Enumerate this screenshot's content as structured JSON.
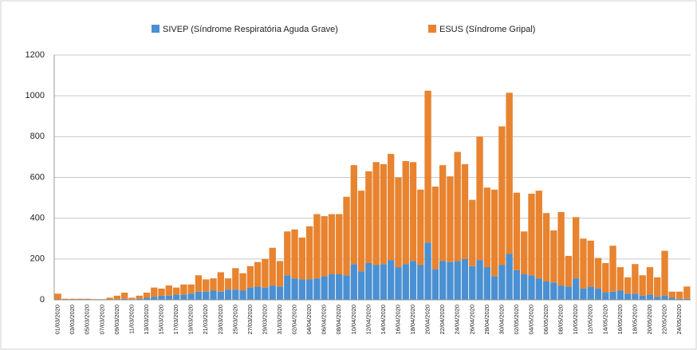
{
  "chart_data": {
    "type": "stacked_bar",
    "categories": [
      "01/03/2020",
      null,
      "03/03/2020",
      null,
      "05/03/2020",
      null,
      "07/03/2020",
      null,
      "09/03/2020",
      null,
      "11/03/2020",
      null,
      "13/03/2020",
      null,
      "15/03/2020",
      null,
      "17/03/2020",
      null,
      "19/03/2020",
      null,
      "21/03/2020",
      null,
      "23/03/2020",
      null,
      "25/03/2020",
      null,
      "27/03/2020",
      null,
      "29/03/2020",
      null,
      "31/03/2020",
      null,
      "02/04/2020",
      null,
      "04/04/2020",
      null,
      "06/04/2020",
      null,
      "08/04/2020",
      null,
      "10/04/2020",
      null,
      "12/04/2020",
      null,
      "14/04/2020",
      null,
      "16/04/2020",
      null,
      "18/04/2020",
      null,
      "20/04/2020",
      null,
      "22/04/2020",
      null,
      "24/04/2020",
      null,
      "26/04/2020",
      null,
      "28/04/2020",
      null,
      "30/04/2020",
      null,
      "02/05/2020",
      null,
      "04/05/2020",
      null,
      "06/05/2020",
      null,
      "08/05/2020",
      null,
      "10/05/2020",
      null,
      "12/05/2020",
      null,
      "14/05/2020",
      null,
      "16/05/2020",
      null,
      "18/05/2020",
      null,
      "20/05/2020",
      null,
      "22/05/2020",
      null,
      "24/05/2020",
      null
    ],
    "series": [
      {
        "name": "SIVEP (Síndrome Respiratória Aguda Grave)",
        "color": "#4a90d2",
        "values": [
          2,
          1,
          1,
          1,
          1,
          1,
          1,
          2,
          3,
          5,
          3,
          5,
          10,
          15,
          20,
          20,
          25,
          25,
          30,
          40,
          40,
          45,
          40,
          50,
          50,
          45,
          60,
          65,
          60,
          70,
          65,
          120,
          105,
          100,
          100,
          105,
          115,
          125,
          125,
          120,
          175,
          140,
          180,
          170,
          175,
          195,
          160,
          175,
          190,
          170,
          280,
          150,
          190,
          185,
          190,
          200,
          165,
          195,
          160,
          115,
          170,
          225,
          145,
          125,
          120,
          105,
          90,
          85,
          70,
          65,
          105,
          55,
          65,
          55,
          35,
          40,
          45,
          30,
          30,
          20,
          25,
          15,
          20,
          10,
          5,
          5
        ]
      },
      {
        "name": "ESUS (Síndrome Gripal)",
        "color": "#e8832f",
        "values": [
          28,
          4,
          4,
          4,
          4,
          2,
          2,
          8,
          17,
          30,
          7,
          15,
          25,
          45,
          35,
          50,
          35,
          50,
          45,
          80,
          60,
          60,
          95,
          55,
          105,
          85,
          105,
          120,
          140,
          185,
          125,
          215,
          240,
          205,
          260,
          315,
          295,
          295,
          295,
          385,
          485,
          395,
          450,
          505,
          490,
          520,
          440,
          505,
          485,
          370,
          745,
          405,
          470,
          420,
          535,
          465,
          325,
          605,
          390,
          425,
          680,
          790,
          380,
          210,
          400,
          430,
          335,
          255,
          360,
          150,
          300,
          245,
          225,
          150,
          145,
          225,
          115,
          80,
          145,
          100,
          135,
          95,
          220,
          30,
          35,
          60
        ]
      }
    ],
    "ylim": [
      0,
      1200
    ],
    "yticks": [
      0,
      200,
      400,
      600,
      800,
      1000,
      1200
    ],
    "grid": true,
    "legend": "top"
  }
}
